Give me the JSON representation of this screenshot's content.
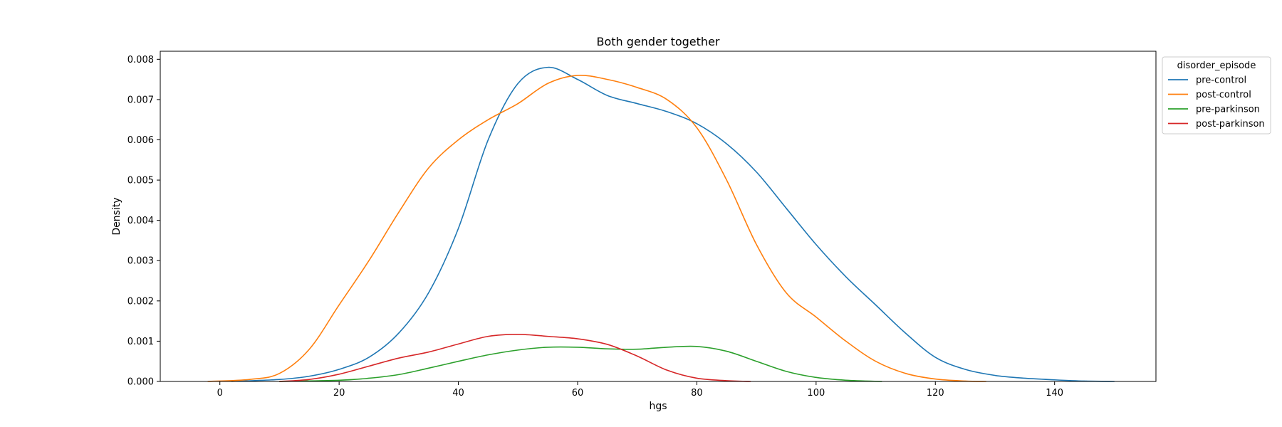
{
  "chart_data": {
    "type": "line",
    "title": "Both gender together",
    "xlabel": "hgs",
    "ylabel": "Density",
    "xlim": [
      -10,
      157
    ],
    "ylim": [
      0,
      0.0082
    ],
    "xticks": [
      0,
      20,
      40,
      60,
      80,
      100,
      120,
      140
    ],
    "xtick_labels": [
      "0",
      "20",
      "40",
      "60",
      "80",
      "100",
      "120",
      "140"
    ],
    "yticks": [
      0,
      0.001,
      0.002,
      0.003,
      0.004,
      0.005,
      0.006,
      0.007,
      0.008
    ],
    "ytick_labels": [
      "0.000",
      "0.001",
      "0.002",
      "0.003",
      "0.004",
      "0.005",
      "0.006",
      "0.007",
      "0.008"
    ],
    "grid": false,
    "legend": {
      "title": "disorder_episode",
      "placement": "outside-top-right"
    },
    "series": [
      {
        "name": "pre-control",
        "color": "#1f77b4",
        "x": [
          2,
          10,
          15,
          20,
          25,
          30,
          35,
          40,
          45,
          50,
          55,
          60,
          65,
          70,
          75,
          80,
          85,
          90,
          95,
          100,
          105,
          110,
          115,
          120,
          125,
          130,
          135,
          140,
          145,
          150
        ],
        "y": [
          0,
          5e-05,
          0.00013,
          0.0003,
          0.0006,
          0.0012,
          0.0022,
          0.0038,
          0.006,
          0.0074,
          0.0078,
          0.0075,
          0.0071,
          0.0069,
          0.0067,
          0.0064,
          0.0059,
          0.0052,
          0.0043,
          0.0034,
          0.0026,
          0.0019,
          0.0012,
          0.0006,
          0.0003,
          0.00015,
          8e-05,
          4e-05,
          1e-05,
          0
        ]
      },
      {
        "name": "post-control",
        "color": "#ff7f0e",
        "x": [
          -2,
          5,
          10,
          15,
          20,
          25,
          30,
          35,
          40,
          45,
          50,
          55,
          60,
          65,
          70,
          75,
          80,
          85,
          90,
          95,
          100,
          105,
          110,
          115,
          120,
          125,
          128.5
        ],
        "y": [
          0,
          5e-05,
          0.0002,
          0.0008,
          0.0019,
          0.003,
          0.0042,
          0.0053,
          0.006,
          0.0065,
          0.0069,
          0.0074,
          0.0076,
          0.0075,
          0.0073,
          0.007,
          0.0063,
          0.005,
          0.0034,
          0.0022,
          0.0016,
          0.001,
          0.0005,
          0.0002,
          6e-05,
          1e-05,
          0
        ]
      },
      {
        "name": "pre-parkinson",
        "color": "#2ca02c",
        "x": [
          10,
          20,
          25,
          30,
          35,
          40,
          45,
          50,
          55,
          60,
          65,
          70,
          75,
          80,
          85,
          90,
          95,
          100,
          105,
          111
        ],
        "y": [
          0,
          3e-05,
          8e-05,
          0.00017,
          0.00033,
          0.0005,
          0.00066,
          0.00078,
          0.00085,
          0.00085,
          0.00081,
          0.0008,
          0.00085,
          0.00087,
          0.00075,
          0.0005,
          0.00025,
          0.0001,
          3e-05,
          0
        ]
      },
      {
        "name": "post-parkinson",
        "color": "#d62728",
        "x": [
          10,
          15,
          20,
          25,
          30,
          35,
          40,
          45,
          50,
          55,
          60,
          65,
          70,
          75,
          80,
          85,
          89
        ],
        "y": [
          0,
          5e-05,
          0.00018,
          0.00038,
          0.00058,
          0.00073,
          0.00093,
          0.00112,
          0.00117,
          0.00112,
          0.00106,
          0.00092,
          0.00063,
          0.00028,
          8e-05,
          2e-05,
          0
        ]
      }
    ]
  }
}
